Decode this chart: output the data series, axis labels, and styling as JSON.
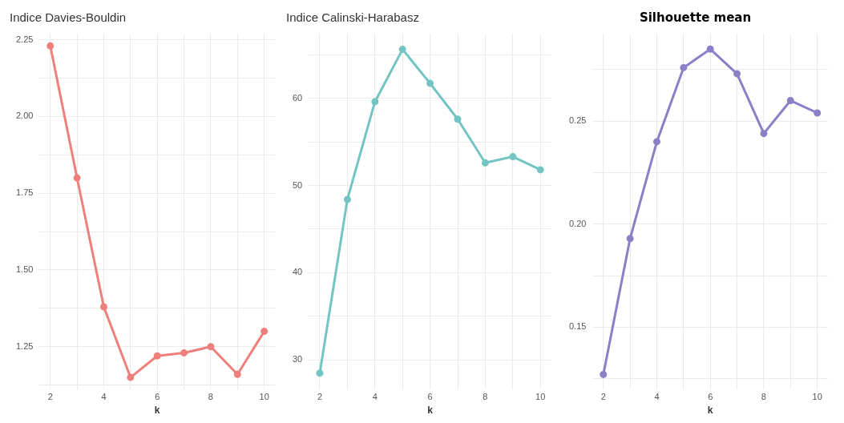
{
  "chart_data": [
    {
      "type": "line",
      "title": "Indice Davies-Bouldin",
      "xlabel": "k",
      "x": [
        2,
        3,
        4,
        5,
        6,
        7,
        8,
        9,
        10
      ],
      "values": [
        2.23,
        1.8,
        1.38,
        1.15,
        1.22,
        1.23,
        1.25,
        1.16,
        1.3
      ],
      "color": "#ee7f7b",
      "marker": "circle",
      "grid": true,
      "xlim": [
        1.6,
        10.4
      ],
      "xticks": [
        2,
        {
          "value": 3,
          "label": null
        },
        4,
        {
          "value": 5,
          "label": null
        },
        6,
        {
          "value": 7,
          "label": null
        },
        8,
        {
          "value": 9,
          "label": null
        },
        10
      ],
      "ylim": [
        1.11,
        2.27
      ],
      "yticks": [
        {
          "value": 1.125,
          "label": null
        },
        {
          "value": 1.25,
          "label": "1.25"
        },
        {
          "value": 1.375,
          "label": null
        },
        {
          "value": 1.5,
          "label": "1.50"
        },
        {
          "value": 1.625,
          "label": null
        },
        {
          "value": 1.75,
          "label": "1.75"
        },
        {
          "value": 1.875,
          "label": null
        },
        {
          "value": 2,
          "label": "2.00"
        },
        {
          "value": 2.125,
          "label": null
        },
        {
          "value": 2.25,
          "label": "2.25"
        }
      ]
    },
    {
      "type": "line",
      "title": "Indice Calinski-Harabasz",
      "xlabel": "k",
      "x": [
        2,
        3,
        4,
        5,
        6,
        7,
        8,
        9,
        10
      ],
      "values": [
        28.5,
        48.4,
        59.6,
        65.6,
        61.7,
        57.6,
        52.6,
        53.3,
        51.8
      ],
      "color": "#72c5c2",
      "marker": "circle",
      "grid": true,
      "xlim": [
        1.6,
        10.4
      ],
      "xticks": [
        2,
        {
          "value": 3,
          "label": null
        },
        4,
        {
          "value": 5,
          "label": null
        },
        6,
        {
          "value": 7,
          "label": null
        },
        8,
        {
          "value": 9,
          "label": null
        },
        10
      ],
      "ylim": [
        26.6,
        67.4
      ],
      "yticks": [
        30,
        {
          "value": 35,
          "label": null
        },
        40,
        {
          "value": 45,
          "label": null
        },
        50,
        {
          "value": 55,
          "label": null
        },
        60,
        {
          "value": 65,
          "label": null
        }
      ]
    },
    {
      "type": "line",
      "title": "Silhouette mean",
      "xlabel": "k",
      "x": [
        2,
        3,
        4,
        5,
        6,
        7,
        8,
        9,
        10
      ],
      "values": [
        0.127,
        0.193,
        0.24,
        0.276,
        0.285,
        0.273,
        0.244,
        0.26,
        0.254
      ],
      "color": "#8a80c5",
      "marker": "circle",
      "grid": true,
      "xlim": [
        1.6,
        10.4
      ],
      "xticks": [
        2,
        {
          "value": 3,
          "label": null
        },
        4,
        {
          "value": 5,
          "label": null
        },
        6,
        {
          "value": 7,
          "label": null
        },
        8,
        {
          "value": 9,
          "label": null
        },
        10
      ],
      "ylim": [
        0.1196,
        0.2925
      ],
      "yticks": [
        {
          "value": 0.125,
          "label": null
        },
        0.15,
        {
          "value": 0.175,
          "label": null
        },
        {
          "value": 0.2,
          "label": "0.20"
        },
        {
          "value": 0.225,
          "label": null
        },
        0.25,
        {
          "value": 0.275,
          "label": null
        }
      ]
    }
  ]
}
